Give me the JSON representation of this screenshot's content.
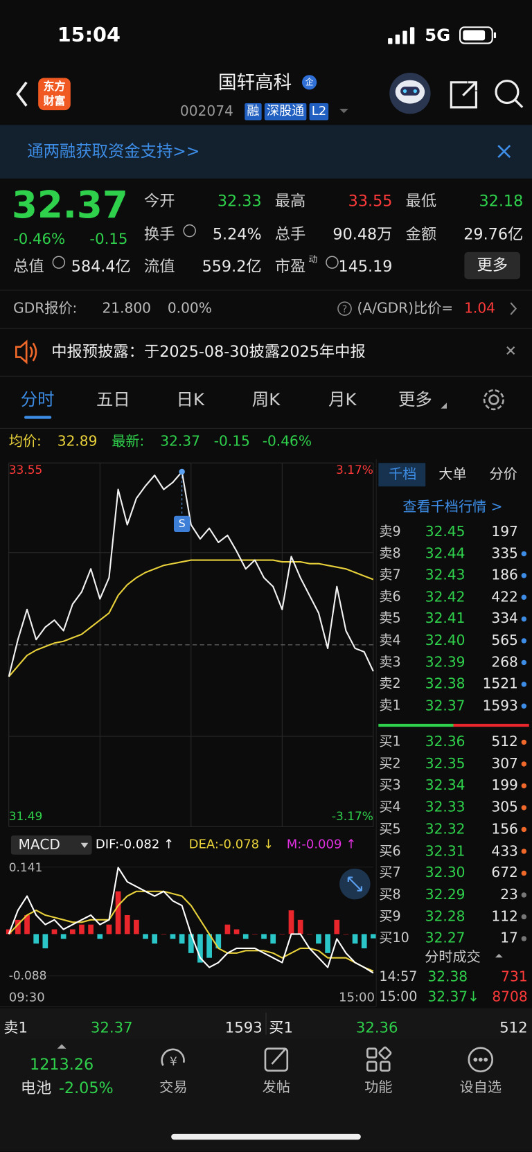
{
  "status": {
    "time": "15:04",
    "network": "5G"
  },
  "header": {
    "logo": [
      "东方",
      "财富"
    ],
    "title": "国轩高科",
    "badge": "企",
    "code": "002074",
    "tags": [
      "融",
      "深股通",
      "L2"
    ]
  },
  "banner": {
    "text": "通两融获取资金支持>>"
  },
  "quote": {
    "price": "32.37",
    "change_pct": "-0.46%",
    "change": "-0.15",
    "more": "更多",
    "fields": [
      {
        "label": "今开",
        "value": "32.33",
        "color": "#2fd04b"
      },
      {
        "label": "最高",
        "value": "33.55",
        "color": "#ff3a3a"
      },
      {
        "label": "最低",
        "value": "32.18",
        "color": "#2fd04b"
      },
      {
        "label": "换手",
        "value": "5.24%",
        "color": "#e8e8e8"
      },
      {
        "label": "总手",
        "value": "90.48万",
        "color": "#e8e8e8"
      },
      {
        "label": "金额",
        "value": "29.76亿",
        "color": "#e8e8e8"
      },
      {
        "label": "总值",
        "value": "584.4亿",
        "color": "#e8e8e8"
      },
      {
        "label": "流值",
        "value": "559.2亿",
        "color": "#e8e8e8"
      },
      {
        "label": "市盈",
        "sup": "动",
        "value": "145.19",
        "color": "#e8e8e8"
      }
    ]
  },
  "gdr": {
    "label": "GDR报价:",
    "price": "21.800",
    "pct": "0.00%",
    "ratio_label": "(A/GDR)比价=",
    "ratio": "1.04"
  },
  "notice": {
    "text": "中报预披露：于2025-08-30披露2025年中报"
  },
  "tabs": [
    "分时",
    "五日",
    "日K",
    "周K",
    "月K",
    "更多"
  ],
  "summary": {
    "avg_label": "均价:",
    "avg": "32.89",
    "latest_label": "最新:",
    "latest": "32.37",
    "change": "-0.15",
    "pct": "-0.46%"
  },
  "price_chart": {
    "ylim": [
      31.49,
      33.55
    ],
    "yticks": [
      33.55,
      31.49
    ],
    "pct_top": "3.17%",
    "pct_bottom": "-3.17%",
    "prev_close": 32.52,
    "x_labels": [
      "09:30",
      "15:00"
    ],
    "marker": "S",
    "price": [
      32.34,
      32.55,
      32.72,
      32.55,
      32.62,
      32.66,
      32.6,
      32.75,
      32.82,
      32.95,
      32.78,
      32.9,
      33.4,
      33.2,
      33.35,
      33.42,
      33.48,
      33.4,
      33.44,
      33.5,
      33.2,
      33.12,
      33.18,
      33.1,
      33.14,
      33.05,
      32.95,
      33.0,
      32.9,
      32.85,
      32.72,
      33.02,
      32.9,
      32.8,
      32.7,
      32.5,
      32.85,
      32.6,
      32.5,
      32.48,
      32.37
    ],
    "avg": [
      32.34,
      32.4,
      32.46,
      32.49,
      32.51,
      32.53,
      32.54,
      32.56,
      32.58,
      32.62,
      32.66,
      32.7,
      32.8,
      32.86,
      32.9,
      32.93,
      32.95,
      32.97,
      32.98,
      32.99,
      33.0,
      33.0,
      33.0,
      33.0,
      33.0,
      33.0,
      33.0,
      33.0,
      33.0,
      33.0,
      32.99,
      32.99,
      32.99,
      32.98,
      32.98,
      32.97,
      32.96,
      32.95,
      32.93,
      32.91,
      32.89
    ],
    "price_color": "#f2f2f2",
    "avg_color": "#e8d13a"
  },
  "macd": {
    "label": "MACD",
    "dif": "DIF:-0.082 ↑",
    "dea": "DEA:-0.078 ↓",
    "m": "M:-0.009 ↑",
    "ylim": [
      -0.088,
      0.141
    ],
    "yticks": [
      0.141,
      -0.088
    ],
    "hist": [
      0.01,
      0.03,
      0.04,
      -0.02,
      -0.03,
      0.01,
      -0.01,
      0.01,
      0.02,
      0.02,
      -0.01,
      0.02,
      0.09,
      0.04,
      0.03,
      -0.01,
      -0.02,
      0.0,
      -0.01,
      -0.02,
      -0.04,
      -0.06,
      -0.05,
      -0.03,
      0.02,
      0.01,
      -0.01,
      0.0,
      -0.01,
      -0.02,
      0.0,
      0.05,
      0.03,
      0.0,
      -0.02,
      -0.04,
      0.03,
      0.0,
      -0.02,
      -0.03,
      -0.009
    ],
    "dif_values": [
      0.0,
      0.05,
      0.08,
      0.04,
      0.02,
      0.03,
      0.01,
      0.02,
      0.03,
      0.04,
      0.02,
      0.03,
      0.14,
      0.11,
      0.1,
      0.09,
      0.08,
      0.09,
      0.07,
      0.06,
      0.0,
      -0.05,
      -0.07,
      -0.06,
      -0.04,
      -0.03,
      -0.03,
      -0.03,
      -0.04,
      -0.05,
      -0.06,
      0.0,
      0.0,
      -0.03,
      -0.05,
      -0.07,
      -0.01,
      -0.04,
      -0.06,
      -0.07,
      -0.082
    ],
    "dea_values": [
      0.0,
      0.02,
      0.04,
      0.05,
      0.04,
      0.035,
      0.03,
      0.025,
      0.025,
      0.03,
      0.03,
      0.03,
      0.06,
      0.08,
      0.09,
      0.09,
      0.09,
      0.09,
      0.085,
      0.08,
      0.06,
      0.03,
      0.0,
      -0.03,
      -0.04,
      -0.04,
      -0.035,
      -0.035,
      -0.035,
      -0.04,
      -0.05,
      -0.04,
      -0.03,
      -0.03,
      -0.035,
      -0.05,
      -0.05,
      -0.05,
      -0.06,
      -0.07,
      -0.078
    ],
    "up_color": "#e8262b",
    "down_color": "#2bc6c8",
    "dif_color": "#ffffff",
    "dea_color": "#e8d13a",
    "m_color": "#e030e0"
  },
  "orderbook": {
    "tabs": [
      "千档",
      "大单",
      "分价"
    ],
    "link": "查看千档行情 >",
    "asks": [
      {
        "name": "卖9",
        "price": "32.45",
        "vol": "197",
        "dot": null
      },
      {
        "name": "卖8",
        "price": "32.44",
        "vol": "335",
        "dot": "#3d8de6"
      },
      {
        "name": "卖7",
        "price": "32.43",
        "vol": "186",
        "dot": "#3d8de6"
      },
      {
        "name": "卖6",
        "price": "32.42",
        "vol": "422",
        "dot": "#3d8de6"
      },
      {
        "name": "卖5",
        "price": "32.41",
        "vol": "334",
        "dot": "#3d8de6"
      },
      {
        "name": "卖4",
        "price": "32.40",
        "vol": "565",
        "dot": "#3d8de6"
      },
      {
        "name": "卖3",
        "price": "32.39",
        "vol": "268",
        "dot": "#3d8de6"
      },
      {
        "name": "卖2",
        "price": "32.38",
        "vol": "1521",
        "dot": "#3d8de6"
      },
      {
        "name": "卖1",
        "price": "32.37",
        "vol": "1593",
        "dot": "#3d8de6"
      }
    ],
    "bids": [
      {
        "name": "买1",
        "price": "32.36",
        "vol": "512",
        "dot": "#f0682a"
      },
      {
        "name": "买2",
        "price": "32.35",
        "vol": "307",
        "dot": "#f0682a"
      },
      {
        "name": "买3",
        "price": "32.34",
        "vol": "199",
        "dot": "#f0682a"
      },
      {
        "name": "买4",
        "price": "32.33",
        "vol": "305",
        "dot": "#f0682a"
      },
      {
        "name": "买5",
        "price": "32.32",
        "vol": "156",
        "dot": "#f0682a"
      },
      {
        "name": "买6",
        "price": "32.31",
        "vol": "433",
        "dot": "#f0682a"
      },
      {
        "name": "买7",
        "price": "32.30",
        "vol": "672",
        "dot": "#f0682a"
      },
      {
        "name": "买8",
        "price": "32.29",
        "vol": "23",
        "dot": "#777777"
      },
      {
        "name": "买9",
        "price": "32.28",
        "vol": "112",
        "dot": "#777777"
      },
      {
        "name": "买10",
        "price": "32.27",
        "vol": "17",
        "dot": "#777777"
      }
    ],
    "trades_title": "分时成交",
    "trades": [
      {
        "time": "14:57",
        "price": "32.38",
        "vol": "731"
      },
      {
        "time": "15:00",
        "price": "32.37↓",
        "vol": "8708"
      }
    ]
  },
  "bottom": {
    "sell_label": "卖1",
    "sell_price": "32.37",
    "sell_vol": "1593",
    "buy_label": "买1",
    "buy_price": "32.36",
    "buy_vol": "512"
  },
  "nav": {
    "index_value": "1213.26",
    "index_name": "电池",
    "index_pct": "-2.05%",
    "items": [
      "交易",
      "发帖",
      "功能",
      "设自选"
    ]
  }
}
